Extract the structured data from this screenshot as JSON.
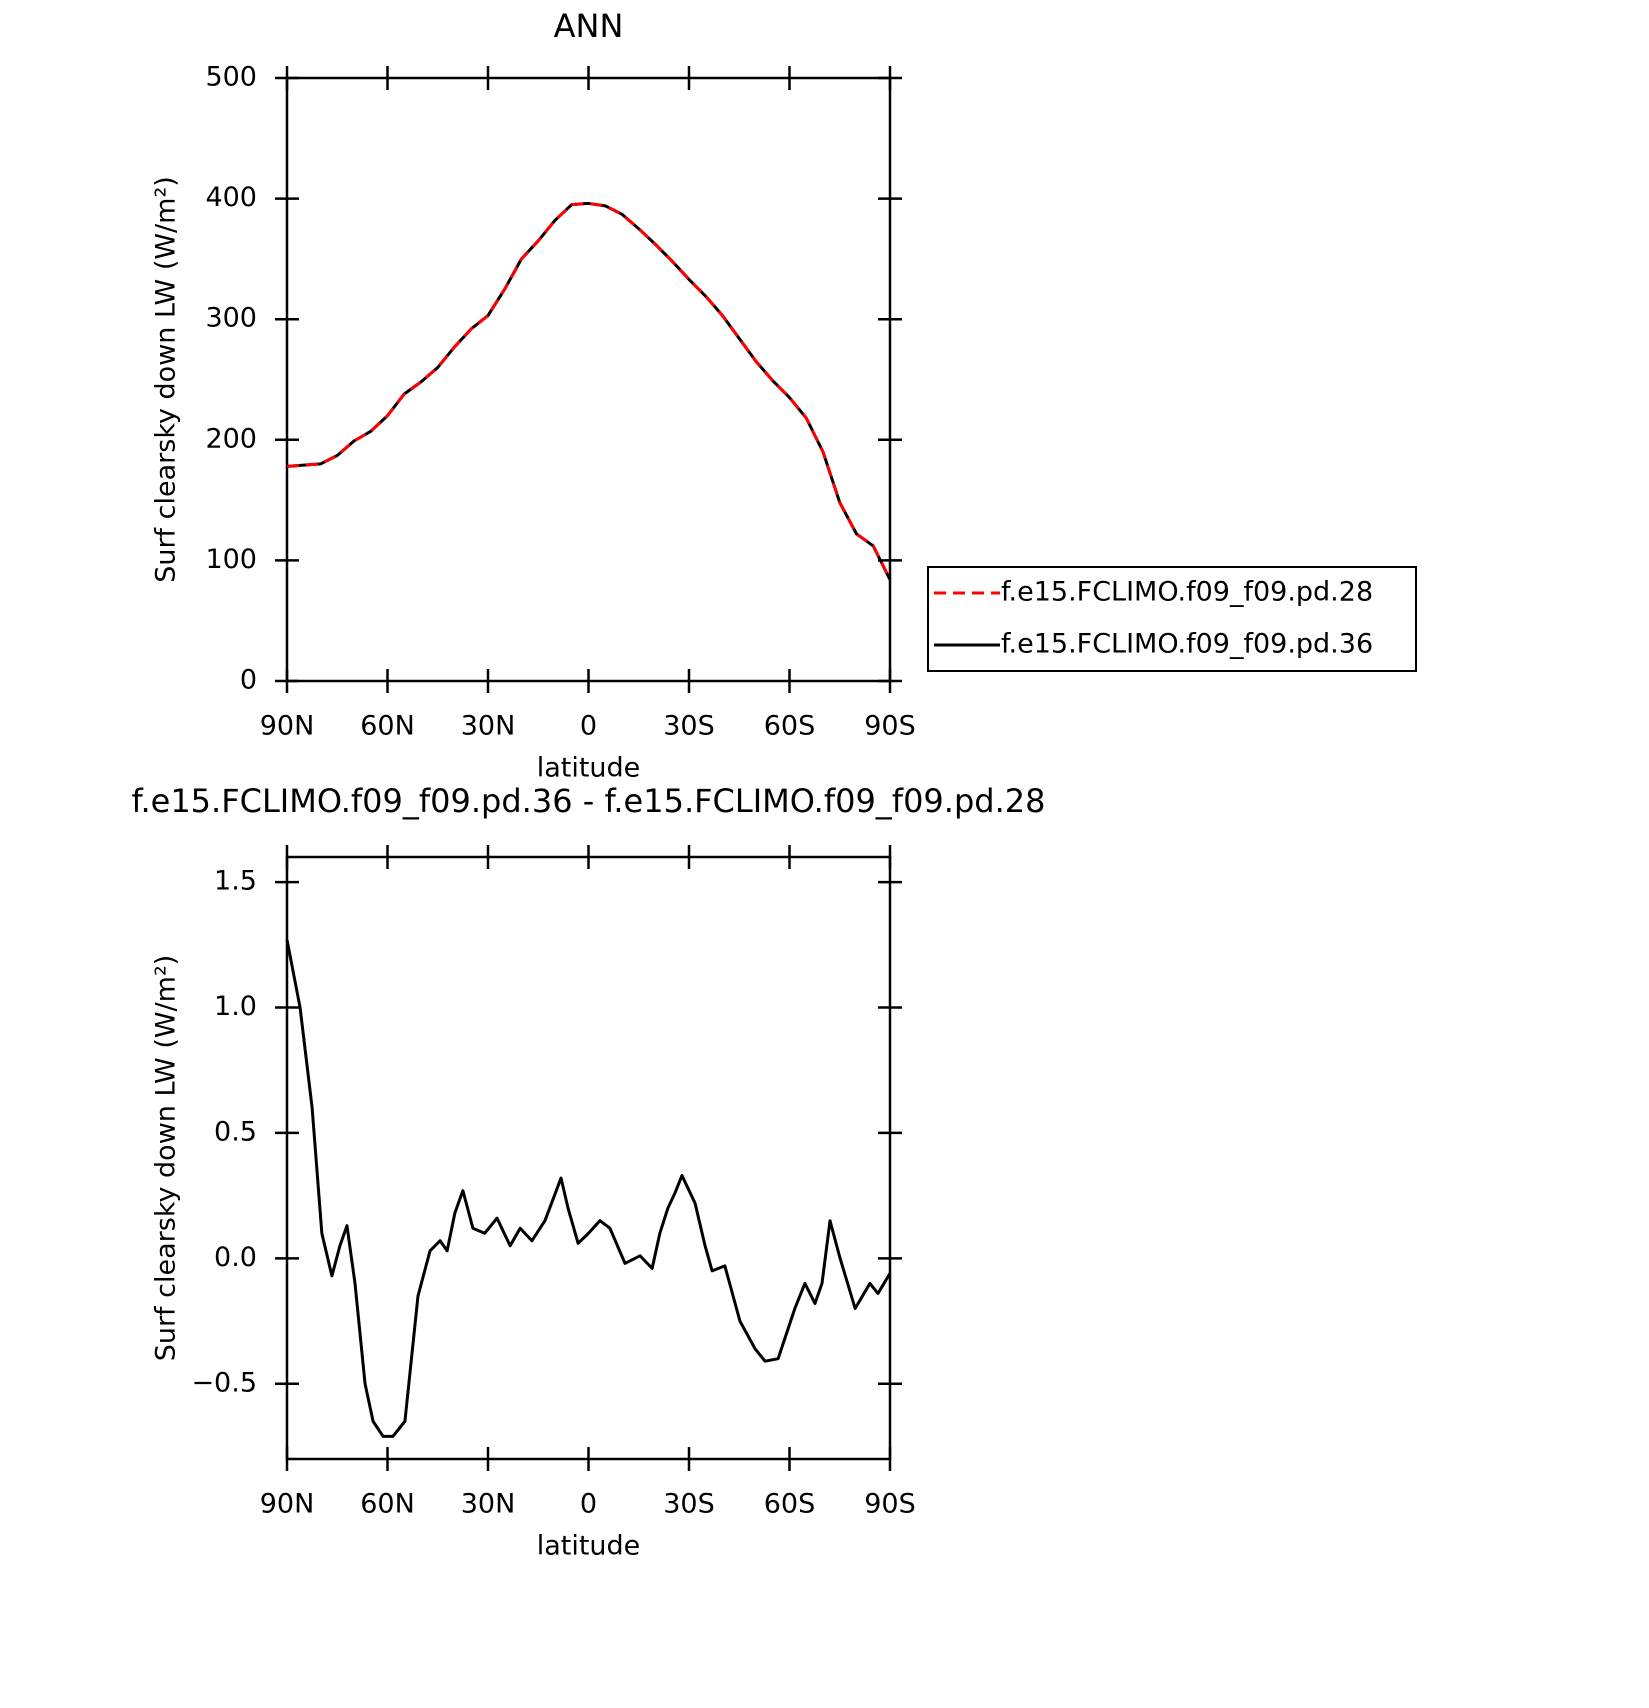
{
  "chart_data": [
    {
      "type": "line",
      "title": "ANN",
      "xlabel": "latitude",
      "ylabel": "Surf clearsky down LW (W/m²)",
      "xlim": [
        90,
        -90
      ],
      "xticks": [
        {
          "value": 90,
          "label": "90N"
        },
        {
          "value": 60,
          "label": "60N"
        },
        {
          "value": 30,
          "label": "30N"
        },
        0,
        {
          "value": -30,
          "label": "30S"
        },
        {
          "value": -60,
          "label": "60S"
        },
        {
          "value": -90,
          "label": "90S"
        }
      ],
      "ylim": [
        0,
        500
      ],
      "yticks": [
        0,
        100,
        200,
        300,
        400,
        500
      ],
      "legend": "outside-right",
      "x": [
        90,
        85,
        80,
        75,
        70,
        65,
        60,
        55,
        50,
        45,
        40,
        35,
        30,
        25,
        20,
        15,
        10,
        5,
        0,
        -5,
        -10,
        -15,
        -20,
        -25,
        -30,
        -35,
        -40,
        -45,
        -50,
        -55,
        -60,
        -65,
        -70,
        -75,
        -80,
        -85,
        -90
      ],
      "series": [
        {
          "name": "f.e15.FCLIMO.f09_f09.pd.36",
          "color": "#000000",
          "dash": false,
          "values": [
            178,
            179,
            180,
            187,
            199,
            207,
            220,
            238,
            248,
            260,
            277,
            292,
            303,
            325,
            350,
            365,
            382,
            395,
            396,
            394,
            387,
            375,
            362,
            348,
            333,
            319,
            303,
            284,
            265,
            249,
            235,
            218,
            190,
            148,
            122,
            112,
            84
          ]
        },
        {
          "name": "f.e15.FCLIMO.f09_f09.pd.28",
          "color": "#ff0000",
          "dash": true,
          "values": [
            178,
            179,
            180,
            187,
            199,
            207,
            220,
            238,
            248,
            260,
            277,
            292,
            303,
            325,
            350,
            365,
            382,
            395,
            396,
            394,
            387,
            375,
            362,
            348,
            333,
            319,
            303,
            284,
            265,
            249,
            235,
            218,
            190,
            148,
            122,
            112,
            84
          ]
        }
      ]
    },
    {
      "type": "line",
      "title": "f.e15.FCLIMO.f09_f09.pd.36 - f.e15.FCLIMO.f09_f09.pd.28",
      "xlabel": "latitude",
      "ylabel": "Surf clearsky down LW (W/m²)",
      "xlim": [
        90,
        -90
      ],
      "xticks": [
        {
          "value": 90,
          "label": "90N"
        },
        {
          "value": 60,
          "label": "60N"
        },
        {
          "value": 30,
          "label": "30N"
        },
        0,
        {
          "value": -30,
          "label": "30S"
        },
        {
          "value": -60,
          "label": "60S"
        },
        {
          "value": -90,
          "label": "90S"
        }
      ],
      "ylim": [
        -0.8,
        1.6
      ],
      "yticks": [
        {
          "value": -0.5,
          "label": "−0.5"
        },
        {
          "value": 0,
          "label": "0.0"
        },
        {
          "value": 0.5,
          "label": "0.5"
        },
        {
          "value": 1,
          "label": "1.0"
        },
        {
          "value": 1.5,
          "label": "1.5"
        }
      ],
      "x": [
        90,
        86.1,
        82.5,
        79.6,
        76.6,
        74.2,
        72.1,
        69.7,
        66.7,
        64.3,
        61.3,
        58.4,
        54.8,
        50.9,
        47.3,
        44.3,
        42.2,
        39.9,
        37.5,
        34.5,
        31,
        27.3,
        23.4,
        20.4,
        16.9,
        13,
        8.2,
        6.1,
        3.1,
        0,
        -3.4,
        -6.4,
        -10.9,
        -15.4,
        -19,
        -21.3,
        -23.7,
        -25.8,
        -27.9,
        -31.8,
        -34.8,
        -36.9,
        -40.7,
        -45.2,
        -49.7,
        -52.7,
        -56.6,
        -61.6,
        -64.6,
        -67.6,
        -69.7,
        -72.1,
        -75.1,
        -79.6,
        -84,
        -86.4,
        -90
      ],
      "series": [
        {
          "color": "#000000",
          "dash": false,
          "values": [
            1.27,
            1.0,
            0.6,
            0.1,
            -0.07,
            0.05,
            0.13,
            -0.1,
            -0.5,
            -0.65,
            -0.71,
            -0.71,
            -0.65,
            -0.15,
            0.03,
            0.07,
            0.03,
            0.18,
            0.27,
            0.12,
            0.1,
            0.16,
            0.05,
            0.12,
            0.07,
            0.15,
            0.32,
            0.2,
            0.06,
            0.1,
            0.15,
            0.12,
            -0.02,
            0.01,
            -0.04,
            0.1,
            0.2,
            0.26,
            0.33,
            0.22,
            0.05,
            -0.05,
            -0.03,
            -0.25,
            -0.36,
            -0.41,
            -0.4,
            -0.2,
            -0.1,
            -0.18,
            -0.1,
            0.15,
            0,
            -0.2,
            -0.1,
            -0.14,
            -0.06
          ]
        }
      ]
    }
  ]
}
